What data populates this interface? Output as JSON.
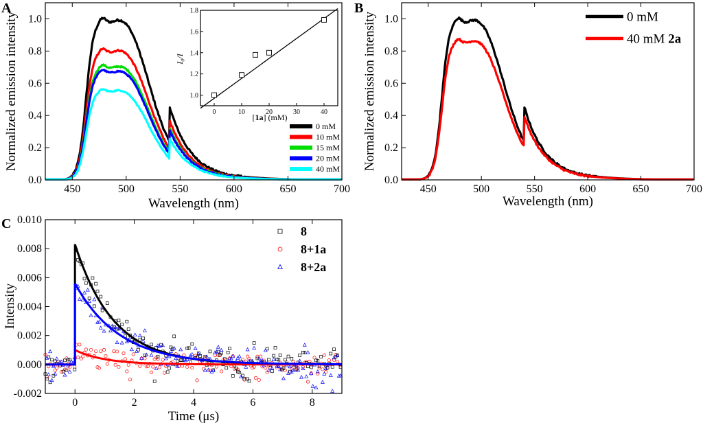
{
  "figure": {
    "panel_labels": [
      "A",
      "B",
      "C"
    ]
  },
  "chart_data": [
    {
      "id": "A",
      "type": "line",
      "xlabel": "Wavelength (nm)",
      "ylabel": "Normalized emission intensity",
      "xlim": [
        425,
        700
      ],
      "ylim": [
        0,
        1.1
      ],
      "xticks": [
        450,
        500,
        550,
        600,
        650,
        700
      ],
      "yticks": [
        0.0,
        0.2,
        0.4,
        0.6,
        0.8,
        1.0
      ],
      "series": [
        {
          "name": "0 mM",
          "color": "#000000",
          "scale": 1.0
        },
        {
          "name": "10 mM",
          "color": "#ff0000",
          "scale": 0.81
        },
        {
          "name": "15 mM",
          "color": "#00dd00",
          "scale": 0.71
        },
        {
          "name": "20 mM",
          "color": "#0000ff",
          "scale": 0.68
        },
        {
          "name": "40 mM",
          "color": "#00ffff",
          "scale": 0.56
        }
      ],
      "legend_position": "bottom-right",
      "inset": {
        "type": "scatter",
        "xlabel_parts": [
          "[",
          "1a",
          "] (mM)"
        ],
        "ylabel": "I₀/I",
        "xlim": [
          -5,
          45
        ],
        "ylim": [
          0.9,
          1.8
        ],
        "xticks": [
          0,
          10,
          20,
          30,
          40
        ],
        "yticks": [
          1.0,
          1.2,
          1.4,
          1.6,
          1.8
        ],
        "points": {
          "x": [
            0,
            10,
            15,
            20,
            40
          ],
          "y": [
            1.0,
            1.19,
            1.38,
            1.4,
            1.71
          ]
        },
        "fit": {
          "slope": 0.0188,
          "intercept": 0.97
        }
      }
    },
    {
      "id": "B",
      "type": "line",
      "xlabel": "Wavelength (nm)",
      "ylabel": "Normalized emission intensity",
      "xlim": [
        425,
        700
      ],
      "ylim": [
        0,
        1.1
      ],
      "xticks": [
        450,
        500,
        550,
        600,
        650,
        700
      ],
      "yticks": [
        0.0,
        0.2,
        0.4,
        0.6,
        0.8,
        1.0
      ],
      "series": [
        {
          "name": "0 mM",
          "color": "#000000",
          "scale": 1.0
        },
        {
          "name": "40 mM ",
          "name_bold": "2a",
          "color": "#ff0000",
          "scale": 0.87
        }
      ],
      "legend_position": "top-right"
    },
    {
      "id": "C",
      "type": "scatter",
      "xlabel": "Time (μs)",
      "ylabel": "Intensity",
      "xlim": [
        -1,
        9
      ],
      "ylim": [
        -0.002,
        0.01
      ],
      "xticks": [
        0,
        2,
        4,
        6,
        8
      ],
      "yticks": [
        "-0.002",
        "0.000",
        "0.002",
        "0.004",
        "0.006",
        "0.008",
        "0.010"
      ],
      "series": [
        {
          "name": "8",
          "color": "#000000",
          "marker": "square",
          "amplitude": 0.0083,
          "tau": 1.3
        },
        {
          "name": "8+1a",
          "color": "#ff0000",
          "marker": "circle",
          "amplitude": 0.001,
          "tau": 1.0
        },
        {
          "name": "8+2a",
          "color": "#0000ff",
          "marker": "triangle",
          "amplitude": 0.0056,
          "tau": 1.5
        }
      ],
      "legend_position": "top-right"
    }
  ]
}
